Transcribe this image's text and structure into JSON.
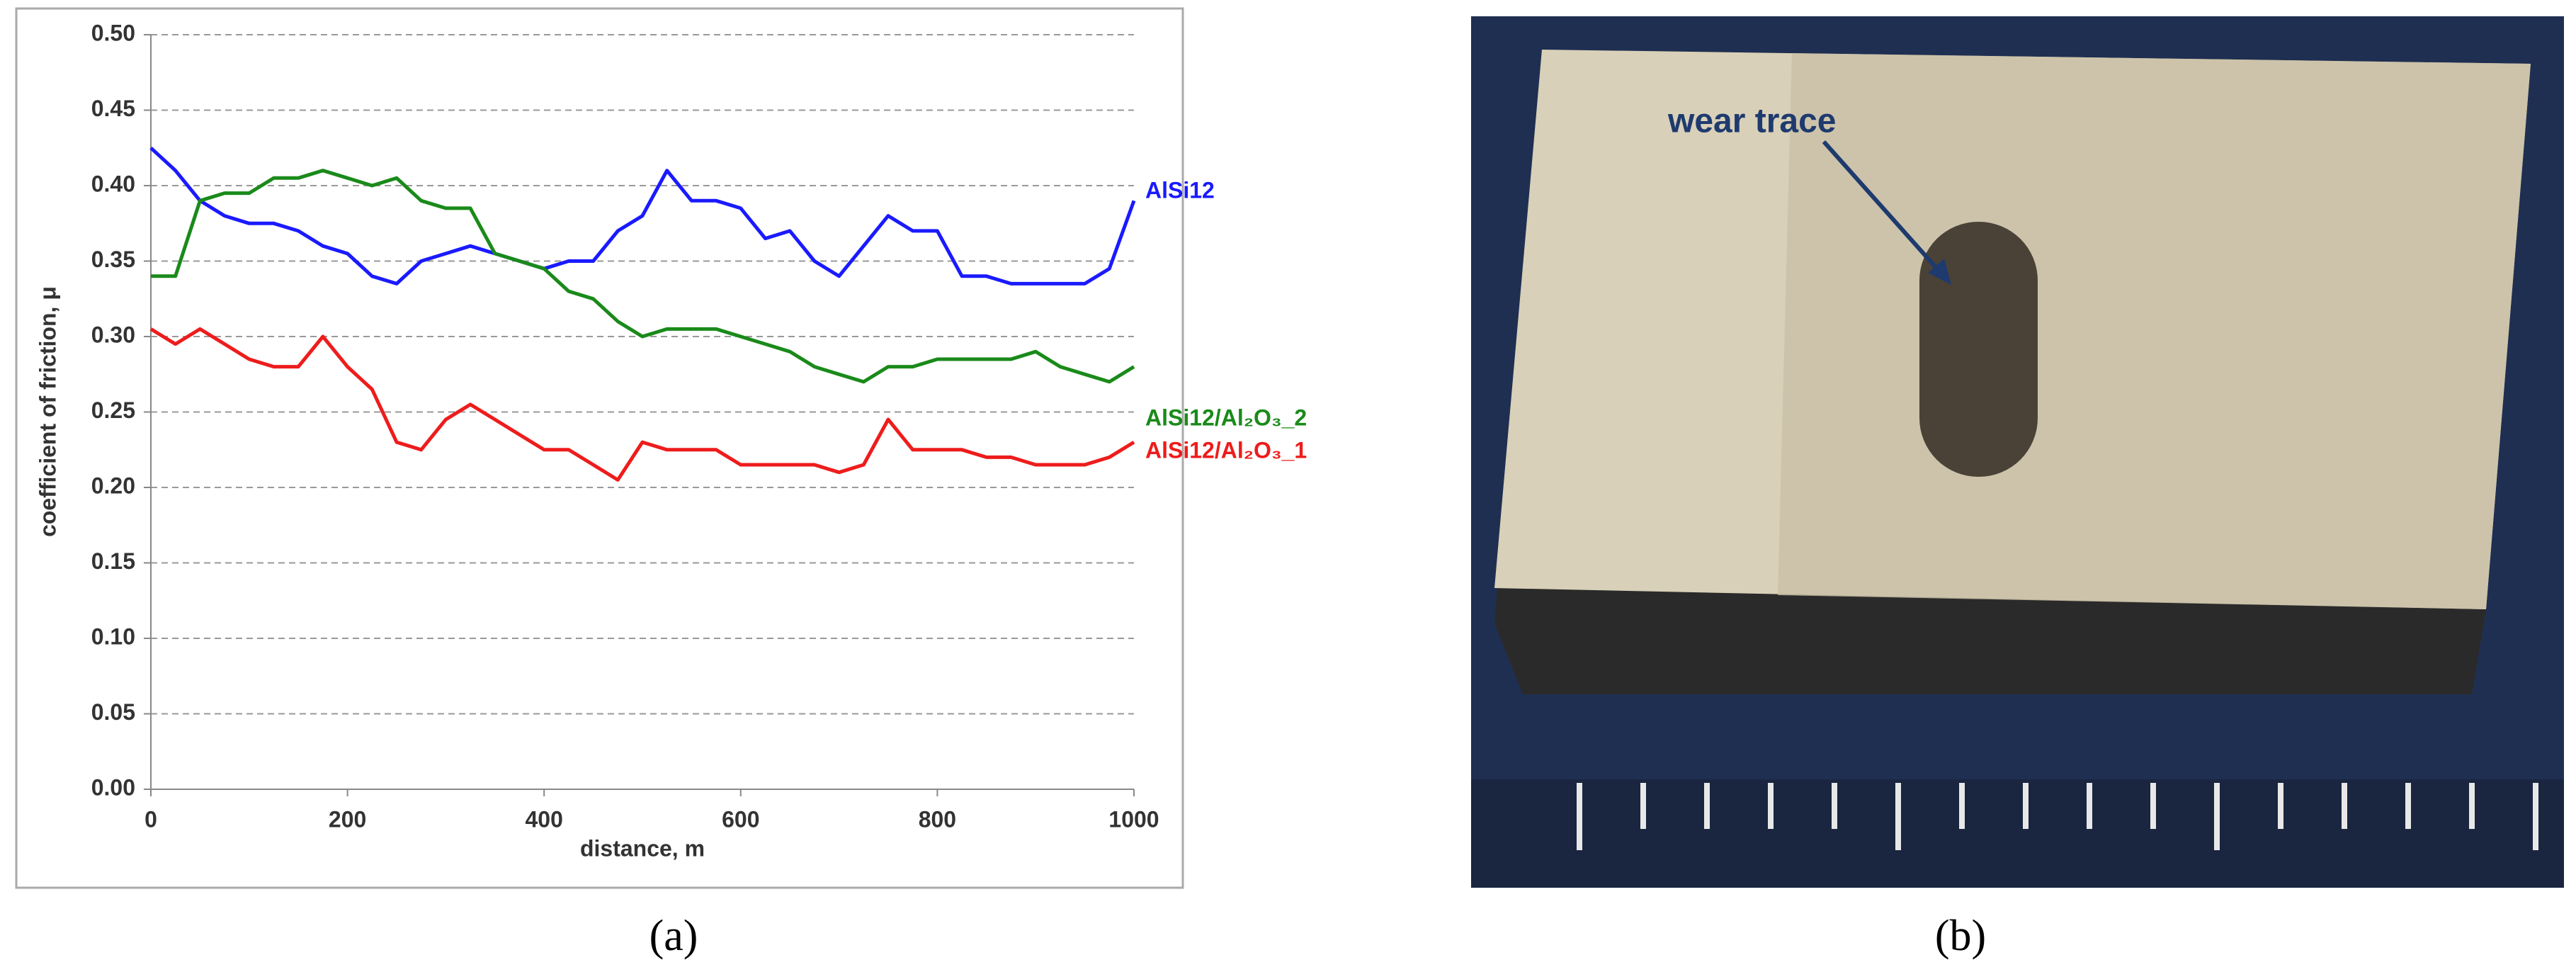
{
  "chart_data": {
    "type": "line",
    "xlabel": "distance, m",
    "ylabel": "coefficient of friction, μ",
    "x": [
      0,
      25,
      50,
      75,
      100,
      125,
      150,
      175,
      200,
      225,
      250,
      275,
      300,
      325,
      350,
      375,
      400,
      425,
      450,
      475,
      500,
      525,
      550,
      575,
      600,
      625,
      650,
      675,
      700,
      725,
      750,
      775,
      800,
      825,
      850,
      875,
      900,
      925,
      950,
      975,
      1000
    ],
    "series": [
      {
        "name": "AlSi12",
        "color": "#1a1aff",
        "values": [
          0.425,
          0.41,
          0.39,
          0.38,
          0.375,
          0.375,
          0.37,
          0.36,
          0.355,
          0.34,
          0.335,
          0.35,
          0.355,
          0.36,
          0.355,
          0.35,
          0.345,
          0.35,
          0.35,
          0.37,
          0.38,
          0.41,
          0.39,
          0.39,
          0.385,
          0.365,
          0.37,
          0.35,
          0.34,
          0.36,
          0.38,
          0.37,
          0.37,
          0.34,
          0.34,
          0.335,
          0.335,
          0.335,
          0.335,
          0.345,
          0.39
        ]
      },
      {
        "name": "AlSi12/Al₂O₃_2",
        "color": "#1a8a1a",
        "values": [
          0.34,
          0.34,
          0.39,
          0.395,
          0.395,
          0.405,
          0.405,
          0.41,
          0.405,
          0.4,
          0.405,
          0.39,
          0.385,
          0.385,
          0.355,
          0.35,
          0.345,
          0.33,
          0.325,
          0.31,
          0.3,
          0.305,
          0.305,
          0.305,
          0.3,
          0.295,
          0.29,
          0.28,
          0.275,
          0.27,
          0.28,
          0.28,
          0.285,
          0.285,
          0.285,
          0.285,
          0.29,
          0.28,
          0.275,
          0.27,
          0.28
        ]
      },
      {
        "name": "AlSi12/Al₂O₃_1",
        "color": "#ee1c1c",
        "values": [
          0.305,
          0.295,
          0.305,
          0.295,
          0.285,
          0.28,
          0.28,
          0.3,
          0.28,
          0.265,
          0.23,
          0.225,
          0.245,
          0.255,
          0.245,
          0.235,
          0.225,
          0.225,
          0.215,
          0.205,
          0.23,
          0.225,
          0.225,
          0.225,
          0.215,
          0.215,
          0.215,
          0.215,
          0.21,
          0.215,
          0.245,
          0.225,
          0.225,
          0.225,
          0.22,
          0.22,
          0.215,
          0.215,
          0.215,
          0.22,
          0.23
        ]
      }
    ],
    "xlim": [
      0,
      1000
    ],
    "xticks": [
      0,
      200,
      400,
      600,
      800,
      1000
    ],
    "ylim": [
      0,
      0.5
    ],
    "yticks": [
      {
        "value": 0,
        "label": "0.00"
      },
      {
        "value": 0.05,
        "label": "0.05"
      },
      {
        "value": 0.1,
        "label": "0.10"
      },
      {
        "value": 0.15,
        "label": "0.15"
      },
      {
        "value": 0.2,
        "label": "0.20"
      },
      {
        "value": 0.25,
        "label": "0.25"
      },
      {
        "value": 0.3,
        "label": "0.30"
      },
      {
        "value": 0.35,
        "label": "0.35"
      },
      {
        "value": 0.4,
        "label": "0.40"
      },
      {
        "value": 0.45,
        "label": "0.45"
      },
      {
        "value": 0.5,
        "label": "0.50"
      }
    ],
    "grid": true
  },
  "captions": {
    "a": "(a)",
    "b": "(b)"
  },
  "photo": {
    "annotation": "wear trace"
  }
}
